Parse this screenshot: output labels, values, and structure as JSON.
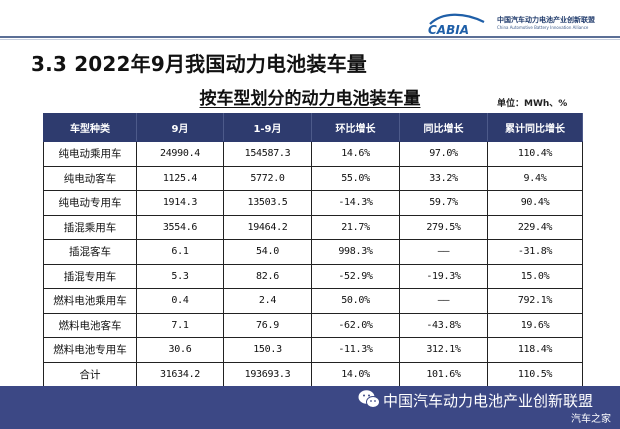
{
  "header": {
    "logo_mark": "CABIA",
    "logo_cn": "中国汽车动力电池产业创新联盟",
    "logo_en": "China Automotive Battery Innovation Alliance"
  },
  "page_title": "3.3  2022年9月我国动力电池装车量",
  "table_title": "按车型划分的动力电池装车量",
  "unit": "单位：MWh、%",
  "table": {
    "columns": [
      "车型种类",
      "9月",
      "1-9月",
      "环比增长",
      "同比增长",
      "累计同比增长"
    ],
    "rows": [
      [
        "纯电动乘用车",
        "24990.4",
        "154587.3",
        "14.6%",
        "97.0%",
        "110.4%"
      ],
      [
        "纯电动客车",
        "1125.4",
        "5772.0",
        "55.0%",
        "33.2%",
        "9.4%"
      ],
      [
        "纯电动专用车",
        "1914.3",
        "13503.5",
        "-14.3%",
        "59.7%",
        "90.4%"
      ],
      [
        "插混乘用车",
        "3554.6",
        "19464.2",
        "21.7%",
        "279.5%",
        "229.4%"
      ],
      [
        "插混客车",
        "6.1",
        "54.0",
        "998.3%",
        "——",
        "-31.8%"
      ],
      [
        "插混专用车",
        "5.3",
        "82.6",
        "-52.9%",
        "-19.3%",
        "15.0%"
      ],
      [
        "燃料电池乘用车",
        "0.4",
        "2.4",
        "50.0%",
        "——",
        "792.1%"
      ],
      [
        "燃料电池客车",
        "7.1",
        "76.9",
        "-62.0%",
        "-43.8%",
        "19.6%"
      ],
      [
        "燃料电池专用车",
        "30.6",
        "150.3",
        "-11.3%",
        "312.1%",
        "118.4%"
      ],
      [
        "合计",
        "31634.2",
        "193693.3",
        "14.0%",
        "101.6%",
        "110.5%"
      ]
    ]
  },
  "footer": {
    "icon": "wechat-icon",
    "text": "中国汽车动力电池产业创新联盟",
    "watermark": "汽车之家"
  },
  "colors": {
    "header_bg": "#2e3b6e",
    "footer_bg": "#3c4885",
    "logo_blue": "#1f5fa8"
  }
}
